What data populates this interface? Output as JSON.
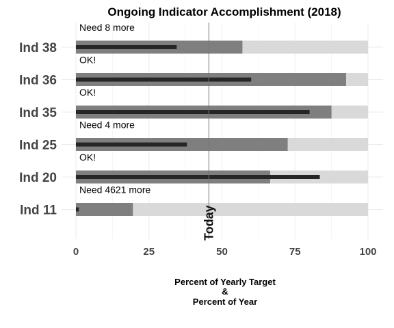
{
  "chart_data": {
    "type": "bar",
    "title": "Ongoing Indicator Accomplishment (2018)",
    "xlabel_lines": [
      "Percent of Yearly Target",
      "&",
      "Percent of Year"
    ],
    "ylabel": "",
    "xlim": [
      0,
      100
    ],
    "x_ticks": [
      0,
      25,
      50,
      75,
      100
    ],
    "grid": true,
    "today": {
      "label": "Today",
      "value": 45.5
    },
    "categories": [
      "Ind 38",
      "Ind 36",
      "Ind 35",
      "Ind 25",
      "Ind 20",
      "Ind 11"
    ],
    "series": [
      {
        "values": [
          100,
          100,
          100,
          100,
          100,
          100
        ],
        "color": "#d9d9d9"
      },
      {
        "values": [
          57,
          92.5,
          87.5,
          72.5,
          66.5,
          19.5
        ],
        "color": "#7f7f7f"
      },
      {
        "values": [
          34.5,
          60,
          80,
          38,
          83.5,
          1
        ],
        "color": "#262626"
      }
    ],
    "annotations": [
      "Need 8 more",
      "OK!",
      "OK!",
      "Need 4 more",
      "OK!",
      "Need 4621 more"
    ]
  }
}
